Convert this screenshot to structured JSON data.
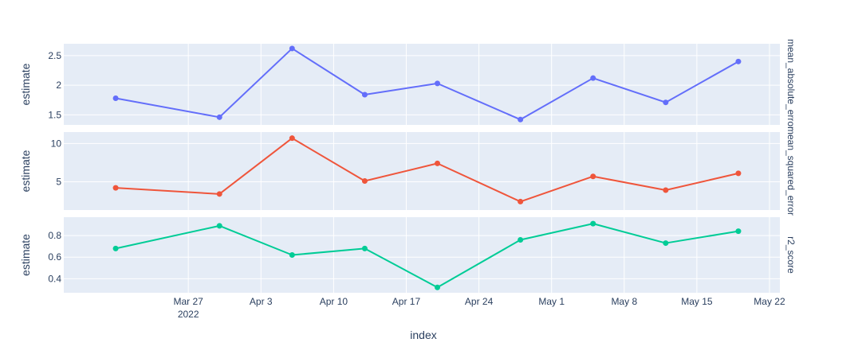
{
  "chart_data": {
    "type": "line",
    "xlabel": "index",
    "x": [
      "2022-03-20",
      "2022-03-30",
      "2022-04-06",
      "2022-04-13",
      "2022-04-20",
      "2022-04-28",
      "2022-05-05",
      "2022-05-12",
      "2022-05-19"
    ],
    "x_range": [
      "2022-03-15",
      "2022-05-23"
    ],
    "x_ticks": [
      {
        "date": "2022-03-27",
        "label": "Mar 27",
        "sublabel": "2022"
      },
      {
        "date": "2022-04-03",
        "label": "Apr 3",
        "sublabel": ""
      },
      {
        "date": "2022-04-10",
        "label": "Apr 10",
        "sublabel": ""
      },
      {
        "date": "2022-04-17",
        "label": "Apr 17",
        "sublabel": ""
      },
      {
        "date": "2022-04-24",
        "label": "Apr 24",
        "sublabel": ""
      },
      {
        "date": "2022-05-01",
        "label": "May 1",
        "sublabel": ""
      },
      {
        "date": "2022-05-08",
        "label": "May 8",
        "sublabel": ""
      },
      {
        "date": "2022-05-15",
        "label": "May 15",
        "sublabel": ""
      },
      {
        "date": "2022-05-22",
        "label": "May 22",
        "sublabel": ""
      }
    ],
    "grid": true,
    "legend": "none",
    "plot_bg": "#e5ecf6",
    "facets": [
      {
        "label": "mean_absolute_error",
        "ylabel": "estimate",
        "color": "#636efa",
        "ylim": [
          1.33,
          2.7
        ],
        "yticks": [
          {
            "v": 1.5,
            "t": "1.5"
          },
          {
            "v": 2,
            "t": "2"
          },
          {
            "v": 2.5,
            "t": "2.5"
          }
        ],
        "values": [
          1.78,
          1.46,
          2.62,
          1.84,
          2.03,
          1.42,
          2.12,
          1.71,
          2.4
        ]
      },
      {
        "label": "mean_squared_error",
        "ylabel": "estimate",
        "color": "#ef553b",
        "ylim": [
          1.3,
          11.5
        ],
        "yticks": [
          {
            "v": 5,
            "t": "5"
          },
          {
            "v": 10,
            "t": "10"
          }
        ],
        "values": [
          4.2,
          3.4,
          10.7,
          5.1,
          7.4,
          2.4,
          5.7,
          3.9,
          6.1
        ]
      },
      {
        "label": "r2_score",
        "ylabel": "estimate",
        "color": "#00cc96",
        "ylim": [
          0.27,
          0.97
        ],
        "yticks": [
          {
            "v": 0.4,
            "t": "0.4"
          },
          {
            "v": 0.6,
            "t": "0.6"
          },
          {
            "v": 0.8,
            "t": "0.8"
          }
        ],
        "values": [
          0.68,
          0.89,
          0.62,
          0.68,
          0.32,
          0.76,
          0.91,
          0.73,
          0.84
        ]
      }
    ]
  }
}
